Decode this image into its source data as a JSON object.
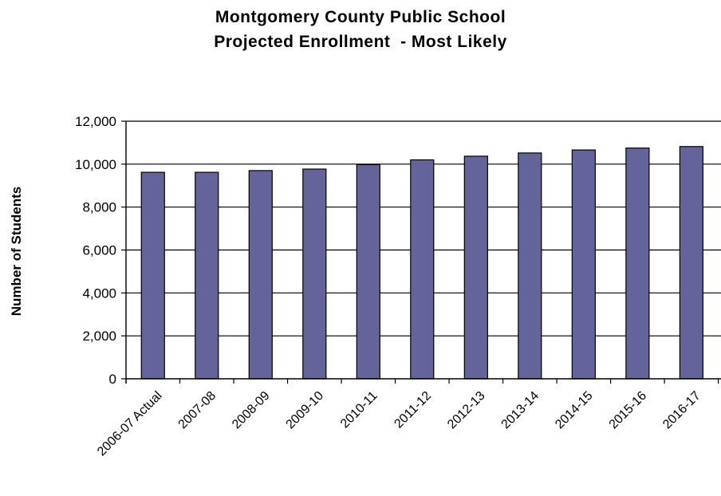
{
  "chart_data": {
    "type": "bar",
    "title": "Montgomery County Public School",
    "subtitle": "Projected Enrollment  - Most Likely",
    "xlabel": "",
    "ylabel": "Number of Students",
    "categories": [
      "2006-07 Actual",
      "2007-08",
      "2008-09",
      "2009-10",
      "2010-11",
      "2011-12",
      "2012-13",
      "2013-14",
      "2014-15",
      "2015-16",
      "2016-17"
    ],
    "series": [
      {
        "values": [
          9620,
          9620,
          9700,
          9770,
          9980,
          10200,
          10370,
          10520,
          10660,
          10750,
          10820
        ]
      }
    ],
    "ylim": [
      0,
      12000
    ],
    "yticks": [
      0,
      2000,
      4000,
      6000,
      8000,
      10000,
      12000
    ],
    "ytick_labels": [
      "0",
      "2,000",
      "4,000",
      "6,000",
      "8,000",
      "10,000",
      "12,000"
    ],
    "grid": true,
    "legend": "none",
    "colors": {
      "bar": "#64649a",
      "bar_edge": "#000000"
    }
  }
}
